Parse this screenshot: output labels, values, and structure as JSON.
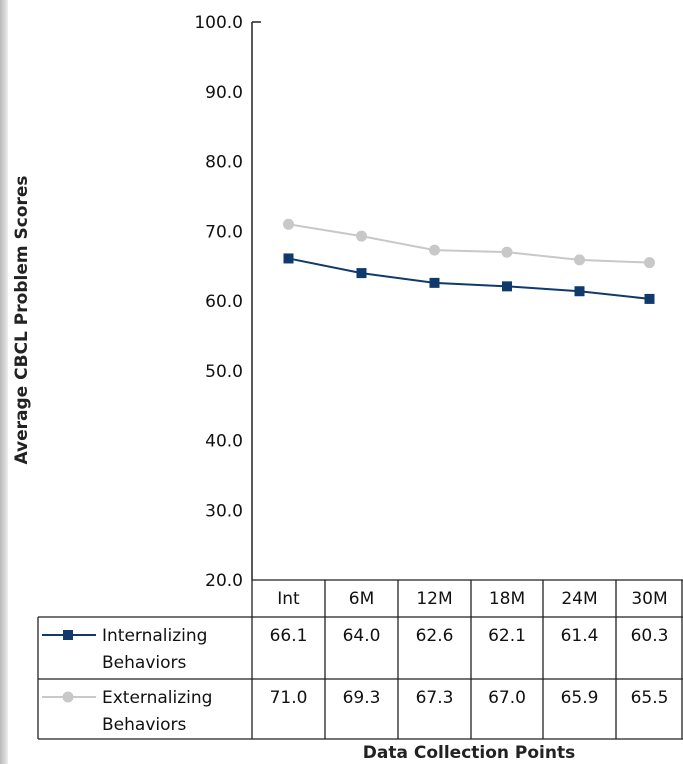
{
  "chart_data": {
    "type": "line",
    "title": "",
    "xlabel": "Data Collection Points",
    "ylabel": "Average CBCL Problem Scores",
    "ylim": [
      20,
      100
    ],
    "yticks": [
      "100.0",
      "90.0",
      "80.0",
      "70.0",
      "60.0",
      "50.0",
      "40.0",
      "30.0",
      "20.0"
    ],
    "categories": [
      "Int",
      "6M",
      "12M",
      "18M",
      "24M",
      "30M"
    ],
    "grid": false,
    "legend": "data-table-left",
    "series": [
      {
        "name_lines": [
          "Internalizing",
          "Behaviors"
        ],
        "values": [
          66.1,
          64.0,
          62.6,
          62.1,
          61.4,
          60.3
        ],
        "labels": [
          "66.1",
          "64.0",
          "62.6",
          "62.1",
          "61.4",
          "60.3"
        ],
        "color": "#0f3a6b",
        "marker": "square"
      },
      {
        "name_lines": [
          "Externalizing",
          "Behaviors"
        ],
        "values": [
          71.0,
          69.3,
          67.3,
          67.0,
          65.9,
          65.5
        ],
        "labels": [
          "71.0",
          "69.3",
          "67.3",
          "67.0",
          "65.9",
          "65.5"
        ],
        "color": "#c8c8c8",
        "marker": "circle"
      }
    ]
  }
}
